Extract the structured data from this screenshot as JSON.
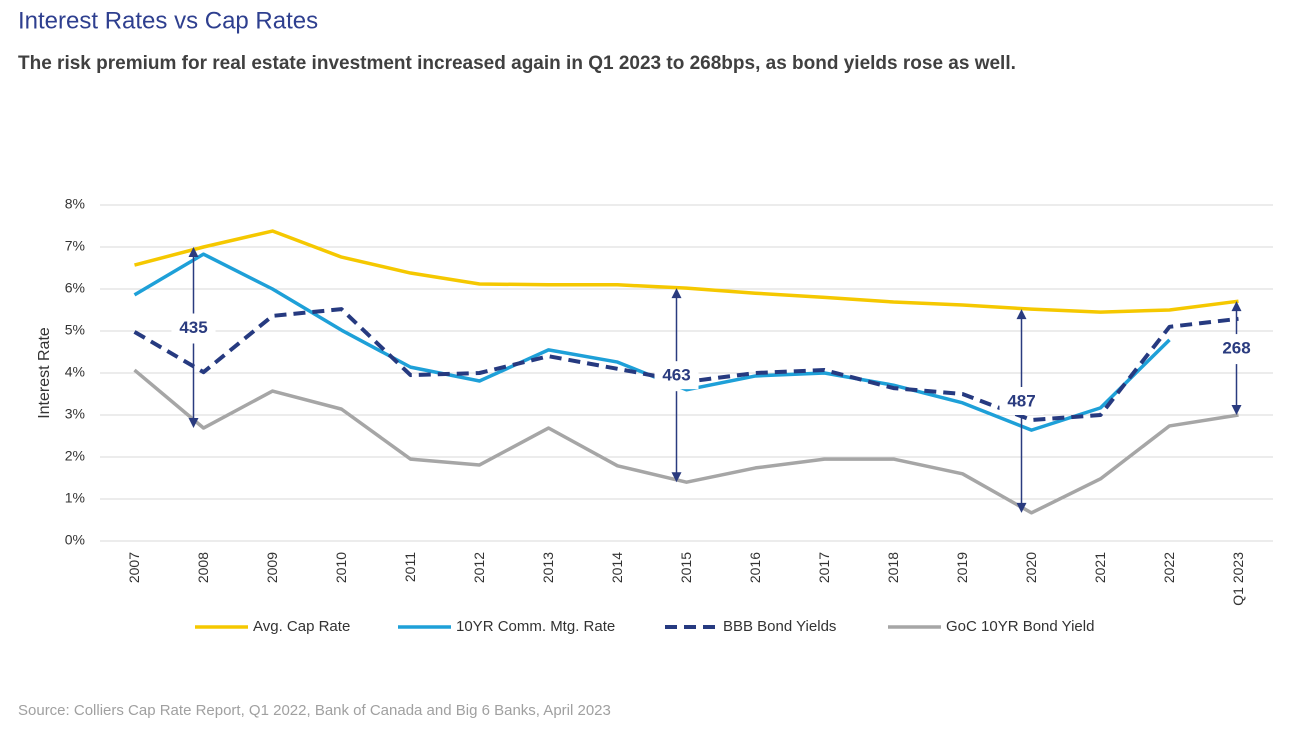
{
  "chart_data": {
    "type": "line",
    "title": "Interest Rates vs Cap Rates",
    "subtitle": "The risk premium for real estate investment increased again in Q1 2023 to 268bps, as bond yields rose as well.",
    "y_label": "Interest Rate",
    "source": "Source: Colliers Cap Rate Report, Q1 2022, Bank of Canada and Big 6 Banks, April 2023",
    "categories": [
      "2007",
      "2008",
      "2009",
      "2010",
      "2011",
      "2012",
      "2013",
      "2014",
      "2015",
      "2016",
      "2017",
      "2018",
      "2019",
      "2020",
      "2021",
      "2022",
      "Q1 2023"
    ],
    "series": [
      {
        "name": "Avg. Cap Rate",
        "color": "#f5c800",
        "values": [
          6.57,
          7.0,
          7.38,
          6.76,
          6.38,
          6.12,
          6.1,
          6.1,
          6.02,
          5.9,
          5.8,
          5.69,
          5.62,
          5.52,
          5.45,
          5.5,
          5.71
        ]
      },
      {
        "name": "10YR Comm. Mtg. Rate",
        "color": "#1ea0d8",
        "values": [
          5.86,
          6.83,
          6.0,
          5.02,
          4.14,
          3.81,
          4.55,
          4.26,
          3.6,
          3.93,
          4.0,
          3.71,
          3.29,
          2.64,
          3.17,
          4.79,
          null
        ]
      },
      {
        "name": "BBB Bond Yields",
        "color": "#263a80",
        "dashed": true,
        "values": [
          4.98,
          4.02,
          5.36,
          5.52,
          3.95,
          4.0,
          4.4,
          4.1,
          3.79,
          4.0,
          4.07,
          3.64,
          3.5,
          2.88,
          3.0,
          5.1,
          5.29
        ]
      },
      {
        "name": "GoC 10YR Bond Yield",
        "color": "#a6a6a6",
        "values": [
          4.07,
          2.69,
          3.57,
          3.14,
          1.95,
          1.81,
          2.69,
          1.79,
          1.4,
          1.74,
          1.95,
          1.95,
          1.6,
          0.67,
          1.48,
          2.74,
          3.0
        ]
      }
    ],
    "annotations": [
      {
        "x": "2008",
        "value": 435
      },
      {
        "x": "2015",
        "value": 463
      },
      {
        "x": "2020",
        "value": 487
      },
      {
        "x": "Q1 2023",
        "value": 268
      }
    ],
    "annotation_color": "#2a3b7f",
    "ylim": [
      0,
      8
    ],
    "yticks": [
      {
        "value": 0,
        "label": "0%"
      },
      {
        "value": 1,
        "label": "1%"
      },
      {
        "value": 2,
        "label": "2%"
      },
      {
        "value": 3,
        "label": "3%"
      },
      {
        "value": 4,
        "label": "4%"
      },
      {
        "value": 5,
        "label": "5%"
      },
      {
        "value": 6,
        "label": "6%"
      },
      {
        "value": 7,
        "label": "7%"
      },
      {
        "value": 8,
        "label": "8%"
      }
    ],
    "grid": true,
    "legend": "bottom"
  }
}
